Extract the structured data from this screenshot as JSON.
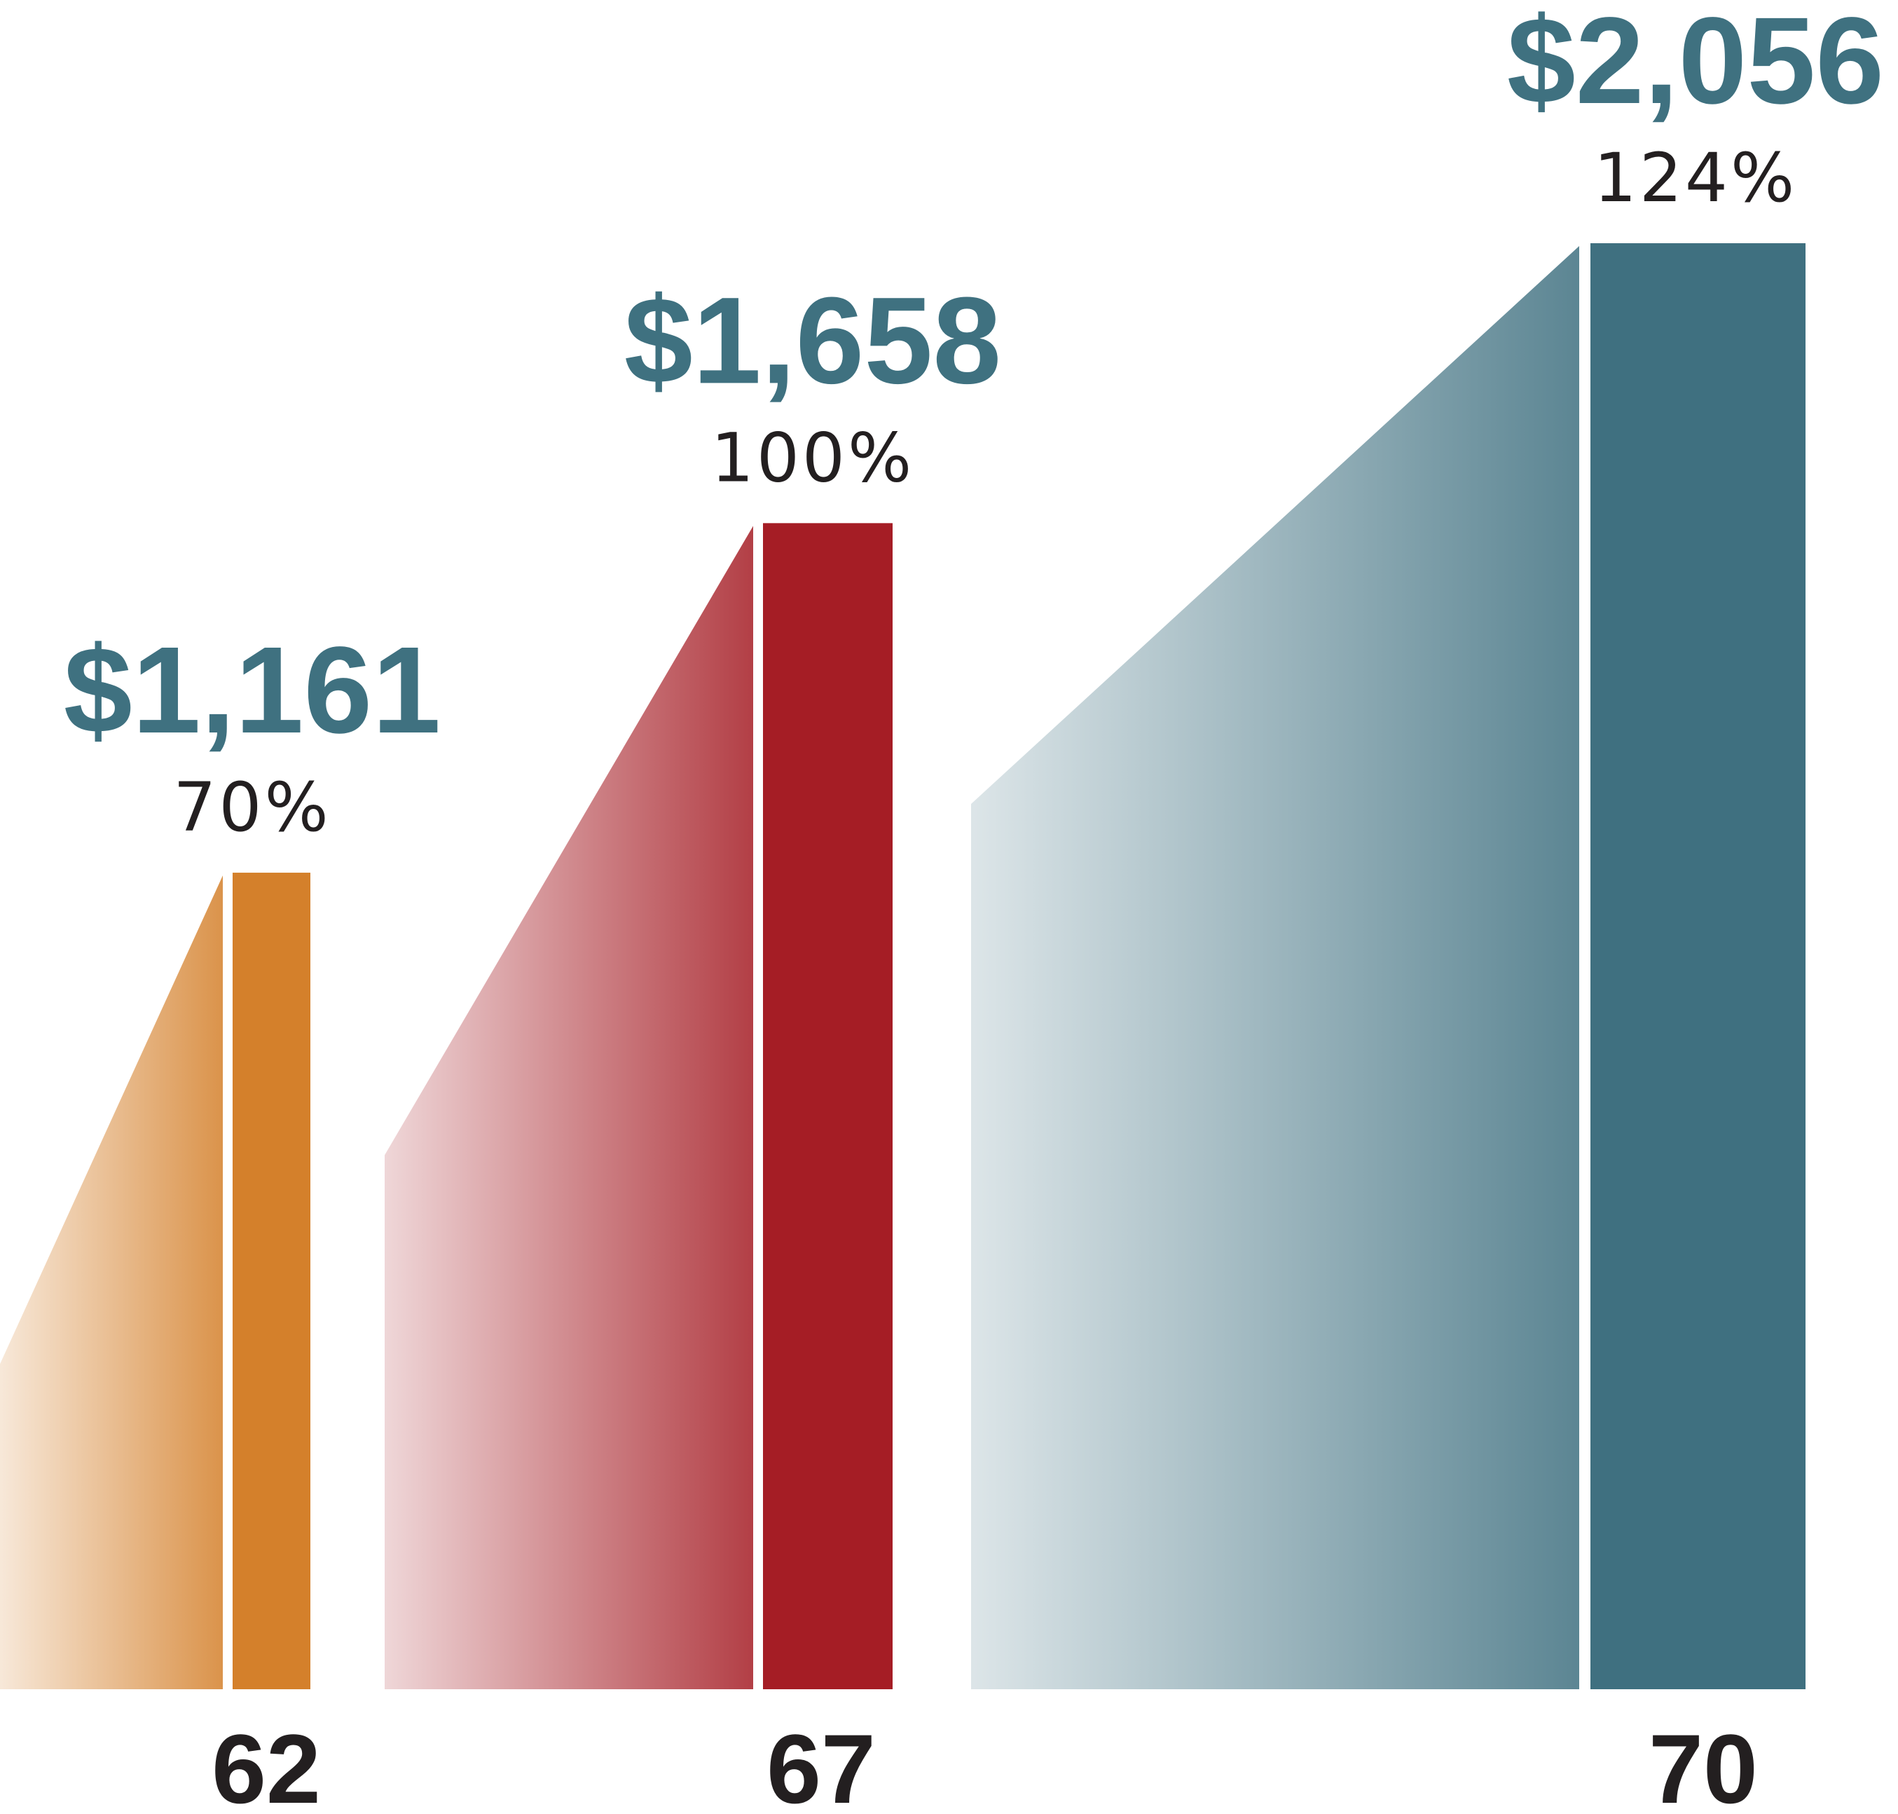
{
  "chart_data": {
    "type": "bar",
    "title": "",
    "xlabel": "",
    "ylabel": "",
    "categories": [
      "62",
      "67",
      "70"
    ],
    "series": [
      {
        "values": [
          1161,
          1658,
          2056
        ],
        "value_labels": [
          "$1,161",
          "$1,658",
          "$2,056"
        ],
        "percent_labels": [
          "70%",
          "100%",
          "124%"
        ]
      }
    ],
    "ylim": [
      0,
      2056
    ],
    "grid": false,
    "legend": "none",
    "colors": [
      "#d4802b",
      "#a51d25",
      "#3f7080"
    ]
  }
}
